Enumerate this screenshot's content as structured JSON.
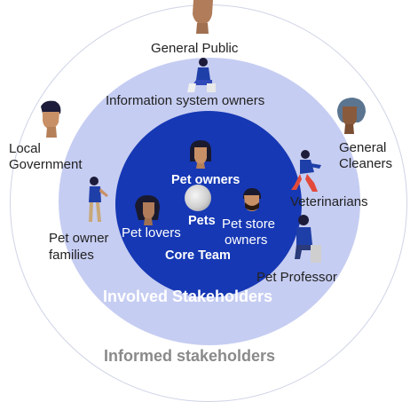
{
  "rings": {
    "outer_title": "Informed stakeholders",
    "middle_title": "Involved Stakeholders",
    "inner_title": "Core Team",
    "colors": {
      "outer": "#ffffff",
      "middle": "#c6cdf2",
      "inner": "#1638b4",
      "outer_title": "#8a8a8a",
      "middle_title": "#ffffff"
    }
  },
  "informed": {
    "general_public": "General Public",
    "local_government_1": "Local",
    "local_government_2": "Government",
    "general_cleaners_1": "General",
    "general_cleaners_2": "Cleaners"
  },
  "involved": {
    "info_system_owners": "Information system owners",
    "veterinarians": "Veterinarians",
    "pet_owner_families_1": "Pet owner",
    "pet_owner_families_2": "families",
    "pet_professor": "Pet Professor"
  },
  "core": {
    "pet_owners": "Pet owners",
    "pets": "Pets",
    "pet_lovers": "Pet lovers",
    "pet_store_owners_1": "Pet store",
    "pet_store_owners_2": "owners"
  },
  "icons": [
    "person-avatar-icon",
    "person-sitting-icon",
    "person-running-icon",
    "person-walking-icon",
    "pet-photo-icon"
  ]
}
